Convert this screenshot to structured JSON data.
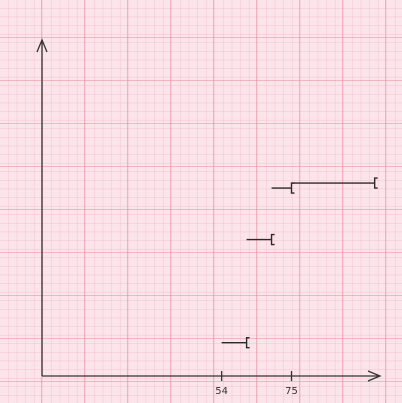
{
  "chart_data": {
    "type": "step",
    "xlim": [
      0,
      101
    ],
    "ylim": [
      0,
      101
    ],
    "xticks": [
      54,
      75
    ],
    "color": "#2a2a2a",
    "segments": [
      {
        "x0": 54,
        "x1": 61.5,
        "y": 10
      },
      {
        "x0": 61.5,
        "x1": 69,
        "y": 41
      },
      {
        "x0": 69,
        "x1": 75,
        "y": 56.5
      },
      {
        "x0": 75,
        "x1": 100,
        "y": 58
      }
    ]
  }
}
